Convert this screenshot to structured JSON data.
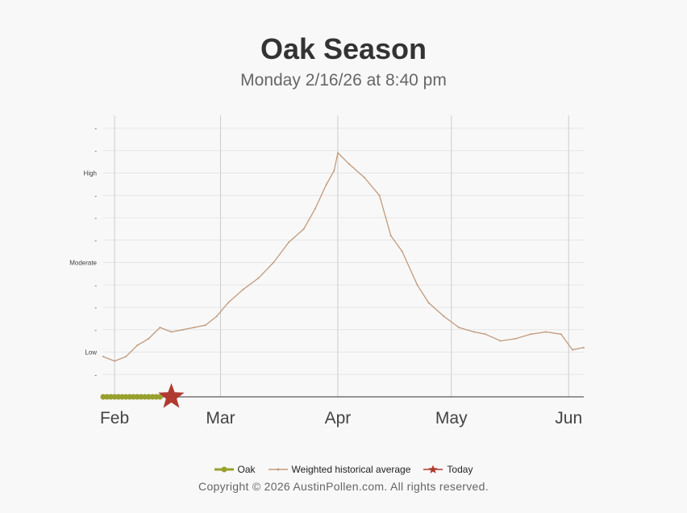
{
  "header": {
    "title": "Oak Season",
    "subtitle": "Monday 2/16/26 at 8:40 pm"
  },
  "footer": {
    "copyright": "Copyright © 2026 AustinPollen.com.  All rights reserved."
  },
  "colors": {
    "oak": "#98a02e",
    "average": "#c19a7c",
    "today": "#b03a30",
    "grid": "#cccccc",
    "axis": "#333333"
  },
  "chart_data": {
    "type": "line",
    "title": "Oak Season",
    "subtitle": "Monday 2/16/26 at 8:40 pm",
    "x_tick_labels": [
      "Feb",
      "Mar",
      "Apr",
      "May",
      "Jun"
    ],
    "x_range": [
      "Jan 29",
      "Jun 5"
    ],
    "y_range": [
      0,
      12
    ],
    "y_tick_labels": [
      {
        "value": 1,
        "label": "-"
      },
      {
        "value": 2,
        "label": "Low"
      },
      {
        "value": 3,
        "label": "-"
      },
      {
        "value": 4,
        "label": "-"
      },
      {
        "value": 5,
        "label": "-"
      },
      {
        "value": 6,
        "label": "Moderate"
      },
      {
        "value": 7,
        "label": "-"
      },
      {
        "value": 8,
        "label": "-"
      },
      {
        "value": 9,
        "label": "-"
      },
      {
        "value": 10,
        "label": "High"
      },
      {
        "value": 11,
        "label": "-"
      },
      {
        "value": 12,
        "label": "-"
      }
    ],
    "grid": true,
    "legend_position": "bottom",
    "series": [
      {
        "name": "Oak",
        "style": "line-with-markers",
        "points": [
          [
            "Jan 29",
            0
          ],
          [
            "Jan 30",
            0
          ],
          [
            "Jan 31",
            0
          ],
          [
            "Feb 1",
            0
          ],
          [
            "Feb 2",
            0
          ],
          [
            "Feb 3",
            0
          ],
          [
            "Feb 4",
            0
          ],
          [
            "Feb 5",
            0
          ],
          [
            "Feb 6",
            0
          ],
          [
            "Feb 7",
            0
          ],
          [
            "Feb 8",
            0
          ],
          [
            "Feb 9",
            0
          ],
          [
            "Feb 10",
            0
          ],
          [
            "Feb 11",
            0
          ],
          [
            "Feb 12",
            0
          ],
          [
            "Feb 13",
            0
          ]
        ]
      },
      {
        "name": "Weighted historical average",
        "style": "line",
        "points": [
          [
            "Jan 29",
            1.8
          ],
          [
            "Feb 1",
            1.6
          ],
          [
            "Feb 4",
            1.8
          ],
          [
            "Feb 7",
            2.3
          ],
          [
            "Feb 10",
            2.6
          ],
          [
            "Feb 13",
            3.1
          ],
          [
            "Feb 16",
            2.9
          ],
          [
            "Feb 19",
            3.0
          ],
          [
            "Feb 22",
            3.1
          ],
          [
            "Feb 25",
            3.2
          ],
          [
            "Feb 28",
            3.6
          ],
          [
            "Mar 3",
            4.2
          ],
          [
            "Mar 7",
            4.8
          ],
          [
            "Mar 11",
            5.3
          ],
          [
            "Mar 15",
            6.0
          ],
          [
            "Mar 19",
            6.9
          ],
          [
            "Mar 23",
            7.5
          ],
          [
            "Mar 26",
            8.4
          ],
          [
            "Mar 29",
            9.5
          ],
          [
            "Mar 31",
            10.1
          ],
          [
            "Apr 1",
            10.9
          ],
          [
            "Apr 4",
            10.4
          ],
          [
            "Apr 8",
            9.8
          ],
          [
            "Apr 12",
            9.0
          ],
          [
            "Apr 15",
            7.2
          ],
          [
            "Apr 18",
            6.5
          ],
          [
            "Apr 22",
            5.0
          ],
          [
            "Apr 25",
            4.2
          ],
          [
            "Apr 29",
            3.6
          ],
          [
            "May 3",
            3.1
          ],
          [
            "May 7",
            2.9
          ],
          [
            "May 10",
            2.8
          ],
          [
            "May 14",
            2.5
          ],
          [
            "May 18",
            2.6
          ],
          [
            "May 22",
            2.8
          ],
          [
            "May 26",
            2.9
          ],
          [
            "May 30",
            2.8
          ],
          [
            "Jun 2",
            2.1
          ],
          [
            "Jun 5",
            2.2
          ]
        ]
      },
      {
        "name": "Today",
        "style": "star-marker",
        "points": [
          [
            "Feb 16",
            0
          ]
        ]
      }
    ],
    "legend": [
      {
        "name": "Oak"
      },
      {
        "name": "Weighted historical average"
      },
      {
        "name": "Today"
      }
    ]
  }
}
